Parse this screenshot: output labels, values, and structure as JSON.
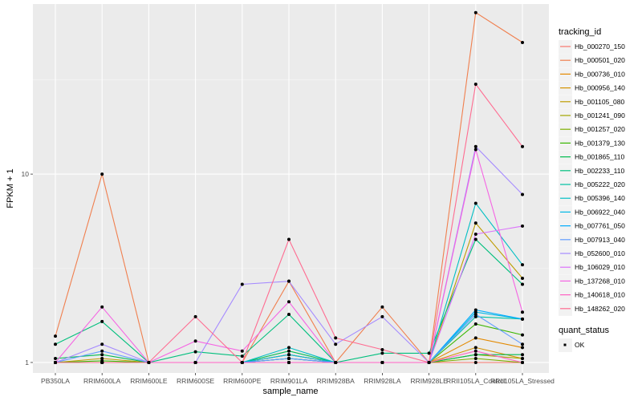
{
  "chart_data": {
    "type": "line",
    "xlabel": "sample_name",
    "ylabel": "FPKM + 1",
    "y_scale": "log10",
    "ylim": [
      0.88,
      80
    ],
    "y_ticks": [
      1,
      10
    ],
    "y_tick_labels": [
      "1",
      "10"
    ],
    "grid": true,
    "background": "#ebebeb",
    "legend_position": "right",
    "legend_title": "tracking_id",
    "legend2_title": "quant_status",
    "legend2_items": [
      "OK"
    ],
    "categories": [
      "PB350LA",
      "RRIM600LA",
      "RRIM600LE",
      "RRIM600SE",
      "RRIM600PE",
      "RRIM901LA",
      "RRIM928BA",
      "RRIM928LA",
      "RRIM928LE",
      "RRII105LA_Control",
      "RRII105LA_Stressed"
    ],
    "series": [
      {
        "name": "Hb_000270_150",
        "color": "#F8766D",
        "values": [
          1.0,
          1.0,
          1.0,
          1.0,
          1.0,
          1.0,
          1.0,
          1.0,
          1.0,
          1.0,
          1.0
        ]
      },
      {
        "name": "Hb_000501_020",
        "color": "#F07F4E",
        "values": [
          1.38,
          10.0,
          1.0,
          1.0,
          1.0,
          2.7,
          1.0,
          1.97,
          1.0,
          72.0,
          50.0
        ]
      },
      {
        "name": "Hb_000736_010",
        "color": "#E38900",
        "values": [
          1.0,
          1.0,
          1.0,
          1.0,
          1.0,
          1.1,
          1.0,
          1.0,
          1.0,
          1.35,
          1.2
        ]
      },
      {
        "name": "Hb_000956_140",
        "color": "#D39200",
        "values": [
          1.0,
          1.0,
          1.0,
          1.0,
          1.0,
          1.05,
          1.0,
          1.0,
          1.0,
          1.2,
          1.05
        ]
      },
      {
        "name": "Hb_001105_080",
        "color": "#BE9C00",
        "values": [
          1.0,
          1.05,
          1.0,
          1.0,
          1.0,
          1.1,
          1.0,
          1.0,
          1.0,
          5.5,
          2.8
        ]
      },
      {
        "name": "Hb_001241_090",
        "color": "#A3A500",
        "values": [
          1.0,
          1.0,
          1.0,
          1.0,
          1.0,
          1.05,
          1.0,
          1.0,
          1.0,
          1.1,
          1.05
        ]
      },
      {
        "name": "Hb_001257_020",
        "color": "#7CAE00",
        "values": [
          1.0,
          1.0,
          1.0,
          1.0,
          1.0,
          1.0,
          1.0,
          1.0,
          1.0,
          1.05,
          1.0
        ]
      },
      {
        "name": "Hb_001379_130",
        "color": "#39B600",
        "values": [
          1.0,
          1.02,
          1.0,
          1.0,
          1.0,
          1.0,
          1.0,
          1.0,
          1.0,
          1.6,
          1.4
        ]
      },
      {
        "name": "Hb_001865_110",
        "color": "#00BB4E",
        "values": [
          1.05,
          1.1,
          1.0,
          1.0,
          1.0,
          1.15,
          1.0,
          1.0,
          1.0,
          1.1,
          1.1
        ]
      },
      {
        "name": "Hb_002233_110",
        "color": "#00BF7D",
        "values": [
          1.25,
          1.65,
          1.0,
          1.14,
          1.08,
          1.8,
          1.0,
          1.12,
          1.12,
          4.5,
          2.6
        ]
      },
      {
        "name": "Hb_005222_020",
        "color": "#00C1A3",
        "values": [
          1.0,
          1.0,
          1.0,
          1.0,
          1.0,
          1.0,
          1.0,
          1.0,
          1.0,
          1.75,
          1.7
        ]
      },
      {
        "name": "Hb_005396_140",
        "color": "#00BFC4",
        "values": [
          1.0,
          1.0,
          1.0,
          1.0,
          1.0,
          1.2,
          1.0,
          1.0,
          1.0,
          7.0,
          3.3
        ]
      },
      {
        "name": "Hb_006922_040",
        "color": "#00B8E5",
        "values": [
          1.0,
          1.0,
          1.0,
          1.0,
          1.0,
          1.1,
          1.0,
          1.0,
          1.0,
          1.85,
          1.7
        ]
      },
      {
        "name": "Hb_007761_050",
        "color": "#00ABFD",
        "values": [
          1.0,
          1.0,
          1.0,
          1.0,
          1.0,
          1.05,
          1.0,
          1.0,
          1.0,
          1.9,
          1.7
        ]
      },
      {
        "name": "Hb_007913_040",
        "color": "#619CFF",
        "values": [
          1.0,
          1.15,
          1.0,
          1.0,
          1.0,
          1.05,
          1.0,
          1.0,
          1.0,
          1.8,
          1.25
        ]
      },
      {
        "name": "Hb_052600_010",
        "color": "#A58AFF",
        "values": [
          1.0,
          1.25,
          1.0,
          1.0,
          2.6,
          2.7,
          1.25,
          1.75,
          1.0,
          14.0,
          7.8
        ]
      },
      {
        "name": "Hb_106029_010",
        "color": "#DB72FB",
        "values": [
          1.0,
          1.0,
          1.0,
          1.0,
          1.0,
          1.0,
          1.0,
          1.0,
          1.0,
          4.8,
          5.3
        ]
      },
      {
        "name": "Hb_137268_010",
        "color": "#F564E3",
        "values": [
          1.0,
          1.97,
          1.0,
          1.3,
          1.15,
          2.1,
          1.0,
          1.0,
          1.0,
          13.5,
          1.85
        ]
      },
      {
        "name": "Hb_140618_010",
        "color": "#FF61C3",
        "values": [
          1.0,
          1.0,
          1.0,
          1.0,
          1.0,
          1.0,
          1.0,
          1.0,
          1.0,
          1.15,
          1.0
        ]
      },
      {
        "name": "Hb_148262_020",
        "color": "#FF6C91",
        "values": [
          1.0,
          1.0,
          1.0,
          1.75,
          1.0,
          4.5,
          1.35,
          1.17,
          1.0,
          30.0,
          14.0
        ]
      }
    ]
  }
}
